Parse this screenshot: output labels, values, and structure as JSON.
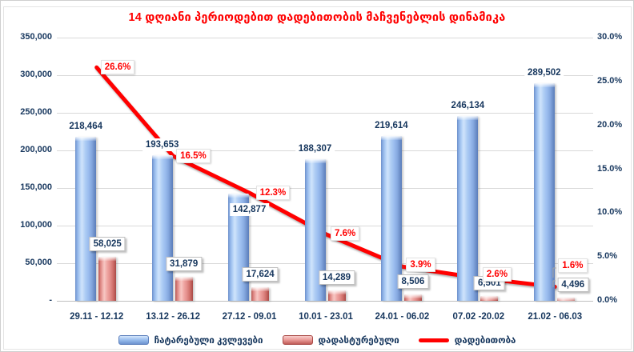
{
  "title": "14 დღიანი პერიოდებით დადებითობის მაჩვენებლის დინამიკა",
  "chart_data": {
    "type": "combo: clustered bars on primary axis + line on secondary axis",
    "categories": [
      "29.11 - 12.12",
      "13.12 - 26.12",
      "27.12 - 09.01",
      "10.01 - 23.01",
      "24.01 - 06.02",
      "07.02 -20.02",
      "21.02 - 06.03"
    ],
    "series": [
      {
        "name": "ჩატარებული კვლევები",
        "type": "bar",
        "axis": "primary-left",
        "color_light": "#CFE3FB",
        "color_dark": "#5C7FBC",
        "values": [
          218464,
          193653,
          142877,
          188307,
          219614,
          246134,
          289502
        ],
        "value_labels": [
          "218,464",
          "193,653",
          "142,877",
          "188,307",
          "219,614",
          "246,134",
          "289,502"
        ]
      },
      {
        "name": "დადასტურებული",
        "type": "bar",
        "axis": "primary-left",
        "color_light": "#F7C6C3",
        "color_dark": "#A94A47",
        "values": [
          58025,
          31879,
          17624,
          14289,
          8506,
          6501,
          4496
        ],
        "value_labels": [
          "58,025",
          "31,879",
          "17,624",
          "14,289",
          "8,506",
          "6,501",
          "4,496"
        ]
      },
      {
        "name": "დადებითობა",
        "type": "line",
        "axis": "secondary-right",
        "color": "#FF0000",
        "values": [
          26.6,
          16.5,
          12.3,
          7.6,
          3.9,
          2.6,
          1.6
        ],
        "value_labels": [
          "26.6%",
          "16.5%",
          "12.3%",
          "7.6%",
          "3.9%",
          "2.6%",
          "1.6%"
        ]
      }
    ],
    "left_axis": {
      "min": 0,
      "max": 350000,
      "tick_labels": [
        "350,000",
        "300,000",
        "250,000",
        "200,000",
        "150,000",
        "100,000",
        "50,000",
        "-"
      ],
      "tick_values": [
        350000,
        300000,
        250000,
        200000,
        150000,
        100000,
        50000,
        0
      ]
    },
    "right_axis": {
      "min": 0,
      "max": 30,
      "tick_labels": [
        "30.0%",
        "25.0%",
        "20.0%",
        "15.0%",
        "10.0%",
        "5.0%",
        "0.0%"
      ],
      "tick_values": [
        30,
        25,
        20,
        15,
        10,
        5,
        0
      ]
    },
    "grid": "horizontal gridlines, primary axis",
    "legend_position": "bottom"
  },
  "legend": {
    "items": [
      {
        "label": "ჩატარებული კვლევები",
        "swatch": "blue-bar"
      },
      {
        "label": "დადასტურებული",
        "swatch": "red-bar"
      },
      {
        "label": "დადებითობა",
        "swatch": "red-line"
      }
    ]
  },
  "colors": {
    "title_text": "#FF0000",
    "axis_text": "#17375E",
    "value_label_text": "#17375E",
    "percent_label_text": "#FF0000",
    "line": "#FF0000",
    "gridline": "#D9D9D9"
  }
}
